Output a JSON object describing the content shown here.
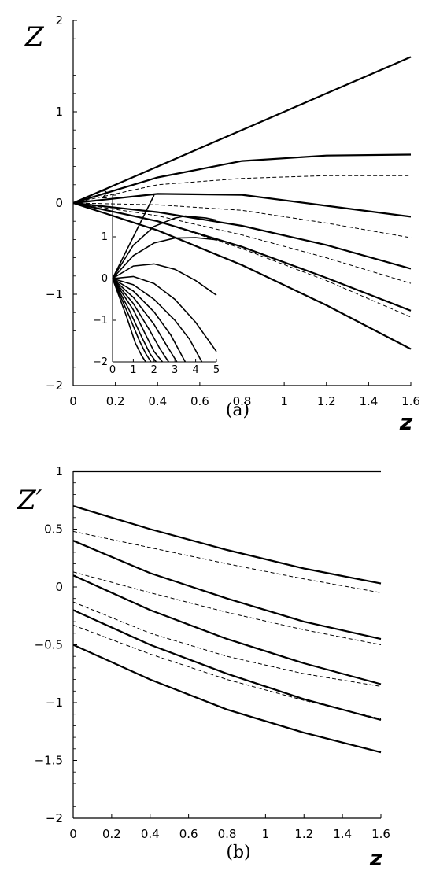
{
  "chart_data": [
    {
      "id": "a",
      "type": "line",
      "caption": "(a)",
      "ylabel": "Z",
      "xlabel": "z",
      "xlim": [
        0,
        1.6
      ],
      "ylim": [
        -2,
        2
      ],
      "xticks": [
        "0",
        "0.2",
        "0.4",
        "0.6",
        "0.8",
        "1",
        "1.2",
        "1.4",
        "1.6"
      ],
      "yticks": [
        "-2",
        "-1",
        "0",
        "1",
        "2"
      ],
      "series": [
        {
          "style": "solid",
          "x": [
            0,
            0.4,
            0.8,
            1.2,
            1.6
          ],
          "y": [
            0,
            0.4,
            0.8,
            1.2,
            1.6
          ]
        },
        {
          "style": "solid",
          "x": [
            0,
            0.4,
            0.8,
            1.2,
            1.6
          ],
          "y": [
            0,
            0.28,
            0.46,
            0.52,
            0.53
          ]
        },
        {
          "style": "dashed",
          "x": [
            0,
            0.4,
            0.8,
            1.2,
            1.6
          ],
          "y": [
            0,
            0.2,
            0.27,
            0.3,
            0.3
          ]
        },
        {
          "style": "solid",
          "x": [
            0,
            0.4,
            0.8,
            1.2,
            1.6
          ],
          "y": [
            0,
            0.1,
            0.09,
            -0.03,
            -0.15
          ]
        },
        {
          "style": "dashed",
          "x": [
            0,
            0.4,
            0.8,
            1.2,
            1.6
          ],
          "y": [
            0,
            -0.02,
            -0.08,
            -0.22,
            -0.38
          ]
        },
        {
          "style": "solid",
          "x": [
            0,
            0.4,
            0.8,
            1.2,
            1.6
          ],
          "y": [
            0,
            -0.1,
            -0.25,
            -0.46,
            -0.72
          ]
        },
        {
          "style": "dashed",
          "x": [
            0,
            0.4,
            0.8,
            1.2,
            1.6
          ],
          "y": [
            0,
            -0.14,
            -0.35,
            -0.6,
            -0.88
          ]
        },
        {
          "style": "solid",
          "x": [
            0,
            0.4,
            0.8,
            1.2,
            1.6
          ],
          "y": [
            0,
            -0.2,
            -0.48,
            -0.82,
            -1.18
          ]
        },
        {
          "style": "dashed",
          "x": [
            0,
            0.4,
            0.8,
            1.2,
            1.6
          ],
          "y": [
            0,
            -0.2,
            -0.5,
            -0.85,
            -1.25
          ]
        },
        {
          "style": "solid",
          "x": [
            0,
            0.4,
            0.8,
            1.2,
            1.6
          ],
          "y": [
            0,
            -0.3,
            -0.68,
            -1.12,
            -1.6
          ]
        }
      ],
      "inset": {
        "type": "line",
        "xlim": [
          0,
          5
        ],
        "ylim": [
          -2,
          2
        ],
        "xticks": [
          "0",
          "1",
          "2",
          "3",
          "4",
          "5"
        ],
        "yticks": [
          "-2",
          "-1",
          "0",
          "1",
          "2"
        ],
        "series": [
          {
            "x": [
              0,
              2
            ],
            "y": [
              0,
              2
            ]
          },
          {
            "x": [
              0,
              1,
              2,
              3,
              3.5,
              4.5,
              5
            ],
            "y": [
              0,
              0.8,
              1.25,
              1.45,
              1.5,
              1.45,
              1.4
            ]
          },
          {
            "x": [
              0,
              1,
              2,
              3,
              4,
              5
            ],
            "y": [
              0,
              0.55,
              0.85,
              0.97,
              0.98,
              0.93
            ]
          },
          {
            "x": [
              0,
              1,
              2,
              3,
              4,
              5
            ],
            "y": [
              0,
              0.3,
              0.35,
              0.22,
              -0.05,
              -0.4
            ]
          },
          {
            "x": [
              0,
              1,
              2,
              3,
              4,
              5
            ],
            "y": [
              0,
              0.05,
              -0.12,
              -0.5,
              -1.05,
              -1.75
            ]
          },
          {
            "x": [
              0,
              1,
              2,
              3,
              3.7,
              4.3
            ],
            "y": [
              0,
              -0.15,
              -0.5,
              -1.0,
              -1.45,
              -2.0
            ]
          },
          {
            "x": [
              0,
              1,
              2,
              2.8,
              3.5
            ],
            "y": [
              0,
              -0.3,
              -0.8,
              -1.35,
              -2.0
            ]
          },
          {
            "x": [
              0,
              1,
              2,
              2.6,
              3.1
            ],
            "y": [
              0,
              -0.45,
              -1.1,
              -1.6,
              -2.0
            ]
          },
          {
            "x": [
              0,
              1,
              1.8,
              2.3,
              2.7
            ],
            "y": [
              0,
              -0.6,
              -1.25,
              -1.7,
              -2.0
            ]
          },
          {
            "x": [
              0,
              1,
              1.6,
              2.0,
              2.4
            ],
            "y": [
              0,
              -0.75,
              -1.35,
              -1.75,
              -2.0
            ]
          },
          {
            "x": [
              0,
              0.8,
              1.4,
              1.8,
              2.1
            ],
            "y": [
              0,
              -0.75,
              -1.4,
              -1.8,
              -2.0
            ]
          },
          {
            "x": [
              0,
              0.8,
              1.3,
              1.6,
              1.85
            ],
            "y": [
              0,
              -0.9,
              -1.5,
              -1.8,
              -2.0
            ]
          },
          {
            "x": [
              0,
              0.7,
              1.1,
              1.4,
              1.6
            ],
            "y": [
              0,
              -0.95,
              -1.55,
              -1.85,
              -2.0
            ]
          }
        ]
      }
    },
    {
      "id": "b",
      "type": "line",
      "caption": "(b)",
      "ylabel": "Z′",
      "xlabel": "z",
      "xlim": [
        0,
        1.6
      ],
      "ylim": [
        -2,
        1
      ],
      "xticks": [
        "0",
        "0.2",
        "0.4",
        "0.6",
        "0.8",
        "1",
        "1.2",
        "1.4",
        "1.6"
      ],
      "yticks": [
        "-2",
        "-1.5",
        "-1",
        "-0.5",
        "0",
        "0.5",
        "1"
      ],
      "series": [
        {
          "style": "solid",
          "x": [
            0,
            1.6
          ],
          "y": [
            1,
            1
          ]
        },
        {
          "style": "solid",
          "x": [
            0,
            0.4,
            0.8,
            1.2,
            1.6
          ],
          "y": [
            0.7,
            0.5,
            0.32,
            0.16,
            0.03
          ]
        },
        {
          "style": "dashed",
          "x": [
            0,
            0.4,
            0.8,
            1.2,
            1.6
          ],
          "y": [
            0.48,
            0.34,
            0.2,
            0.07,
            -0.05
          ]
        },
        {
          "style": "solid",
          "x": [
            0,
            0.4,
            0.8,
            1.2,
            1.6
          ],
          "y": [
            0.4,
            0.12,
            -0.1,
            -0.3,
            -0.45
          ]
        },
        {
          "style": "dashed",
          "x": [
            0,
            0.4,
            0.8,
            1.2,
            1.6
          ],
          "y": [
            0.13,
            -0.05,
            -0.22,
            -0.37,
            -0.5
          ]
        },
        {
          "style": "solid",
          "x": [
            0,
            0.4,
            0.8,
            1.2,
            1.6
          ],
          "y": [
            0.1,
            -0.2,
            -0.45,
            -0.66,
            -0.84
          ]
        },
        {
          "style": "dashed",
          "x": [
            0,
            0.4,
            0.8,
            1.2,
            1.6
          ],
          "y": [
            -0.13,
            -0.4,
            -0.6,
            -0.75,
            -0.86
          ]
        },
        {
          "style": "solid",
          "x": [
            0,
            0.4,
            0.8,
            1.2,
            1.6
          ],
          "y": [
            -0.2,
            -0.5,
            -0.75,
            -0.97,
            -1.15
          ]
        },
        {
          "style": "dashed",
          "x": [
            0,
            0.4,
            0.8,
            1.2,
            1.6
          ],
          "y": [
            -0.33,
            -0.58,
            -0.8,
            -0.98,
            -1.14
          ]
        },
        {
          "style": "solid",
          "x": [
            0,
            0.4,
            0.8,
            1.2,
            1.6
          ],
          "y": [
            -0.5,
            -0.8,
            -1.06,
            -1.26,
            -1.43
          ]
        }
      ]
    }
  ]
}
